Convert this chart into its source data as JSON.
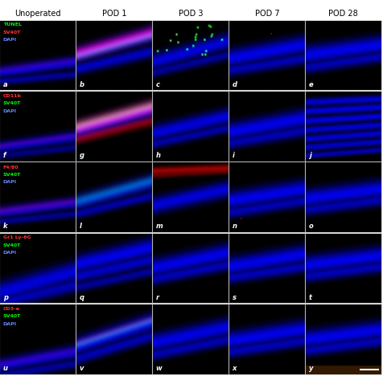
{
  "col_headers": [
    "Unoperated",
    "POD 1",
    "POD 3",
    "POD 7",
    "POD 28"
  ],
  "row_labels": [
    [
      "TUNEL",
      "SV40T",
      "DAPI"
    ],
    [
      "CD11b",
      "SV40T",
      "DAPI"
    ],
    [
      "F4/80",
      "SV40T",
      "DAPI"
    ],
    [
      "Gr1 Ly-6G",
      "SV40T",
      "DAPI"
    ],
    [
      "CD3-e",
      "SV40T",
      "DAPI"
    ]
  ],
  "label_colors": [
    [
      "#00ff00",
      "#ff3333",
      "#6688ff"
    ],
    [
      "#ff3333",
      "#00ff00",
      "#6688ff"
    ],
    [
      "#ff3333",
      "#00ff00",
      "#6688ff"
    ],
    [
      "#ff3333",
      "#00ff00",
      "#6688ff"
    ],
    [
      "#ff3333",
      "#00ff00",
      "#6688ff"
    ]
  ],
  "panel_letters": [
    [
      "a",
      "b",
      "c",
      "d",
      "e"
    ],
    [
      "f",
      "g",
      "h",
      "i",
      "j"
    ],
    [
      "k",
      "l",
      "m",
      "n",
      "o"
    ],
    [
      "p",
      "q",
      "r",
      "s",
      "t"
    ],
    [
      "u",
      "v",
      "w",
      "x",
      "y"
    ]
  ],
  "col_header_fontsize": 7,
  "label_fontsize": 4.5,
  "letter_fontsize": 6,
  "figure_bg": "#ffffff"
}
